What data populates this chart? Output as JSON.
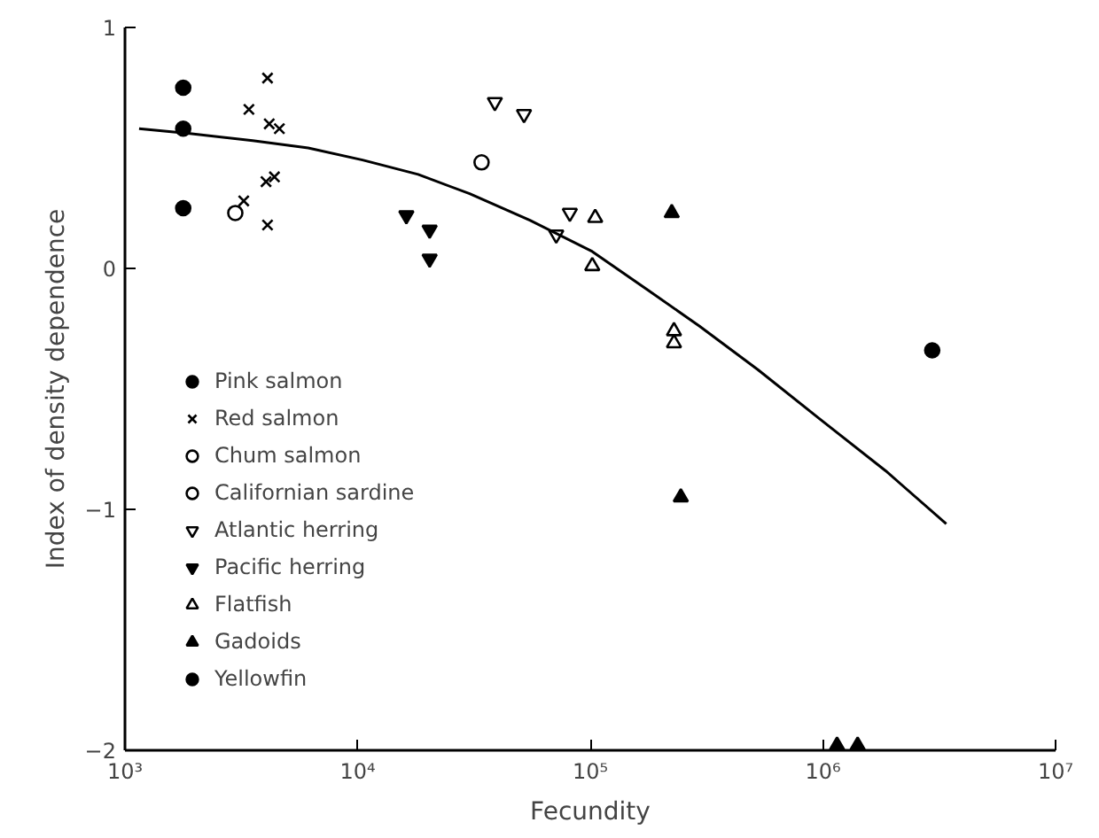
{
  "chart_data": {
    "type": "scatter",
    "xlabel": "Fecundity",
    "ylabel": "Index of density dependence",
    "log": "x",
    "xlim": [
      1000,
      10000000
    ],
    "ylim": [
      -2,
      1
    ],
    "xticks": [
      {
        "value": 1000,
        "label": "10³"
      },
      {
        "value": 10000,
        "label": "10⁴"
      },
      {
        "value": 100000,
        "label": "10⁵"
      },
      {
        "value": 1000000,
        "label": "10⁶"
      },
      {
        "value": 10000000,
        "label": "10⁷"
      }
    ],
    "yticks": [
      {
        "value": -2,
        "label": "−2"
      },
      {
        "value": -1,
        "label": "−1"
      },
      0,
      1
    ],
    "grid": false,
    "legend": "bottom left",
    "series": [
      {
        "name": "Pink salmon",
        "color": "#000000",
        "marker": "circle",
        "x": [
          1780,
          1780,
          1780
        ],
        "values": [
          0.75,
          0.58,
          0.25
        ]
      },
      {
        "name": "Red salmon",
        "color": "#000000",
        "marker": "x",
        "x": [
          4100,
          3410,
          4170,
          4610,
          4040,
          4390,
          3240,
          4100
        ],
        "values": [
          0.79,
          0.66,
          0.6,
          0.58,
          0.36,
          0.38,
          0.28,
          0.18
        ]
      },
      {
        "name": "Chum salmon",
        "color": "#000000",
        "marker": "circle_open",
        "x": [
          2980
        ],
        "values": [
          0.23
        ]
      },
      {
        "name": "Californian sardine",
        "color": "#000000",
        "marker": "circle_open",
        "x": [
          34100
        ],
        "values": [
          0.44
        ]
      },
      {
        "name": "Atlantic herring",
        "color": "#000000",
        "marker": "triangle_open",
        "x": [
          38900,
          51900,
          81700,
          71400
        ],
        "values": [
          0.69,
          0.64,
          0.23,
          0.14
        ]
      },
      {
        "name": "Pacific herring",
        "color": "#000000",
        "marker": "triangle",
        "x": [
          16200,
          20400,
          20400
        ],
        "values": [
          0.22,
          0.16,
          0.04
        ]
      },
      {
        "name": "Flatfish",
        "color": "#000000",
        "marker": "triangle_open",
        "x": [
          105000,
          102000,
          229000,
          229000
        ],
        "values": [
          0.21,
          0.01,
          -0.26,
          -0.31
        ]
      },
      {
        "name": "Gadoids",
        "color": "#000000",
        "marker": "triangle",
        "x": [
          224000,
          245000,
          1150000,
          1410000
        ],
        "values": [
          0.23,
          -0.95,
          -1.98,
          -1.98
        ]
      },
      {
        "name": "Yellowfin",
        "color": "#000000",
        "marker": "circle",
        "x": [
          2950000
        ],
        "values": [
          -0.34
        ]
      },
      {
        "type": "line",
        "color": "#000000",
        "line_style": "solid",
        "x": [
          1150,
          1900,
          3540,
          6130,
          10500,
          18200,
          30300,
          55000,
          102000,
          177000,
          295000,
          525000,
          955000,
          1860000,
          3390000
        ],
        "values": [
          0.58,
          0.56,
          0.53,
          0.5,
          0.45,
          0.39,
          0.31,
          0.2,
          0.07,
          -0.09,
          -0.24,
          -0.42,
          -0.62,
          -0.84,
          -1.06
        ]
      }
    ]
  }
}
